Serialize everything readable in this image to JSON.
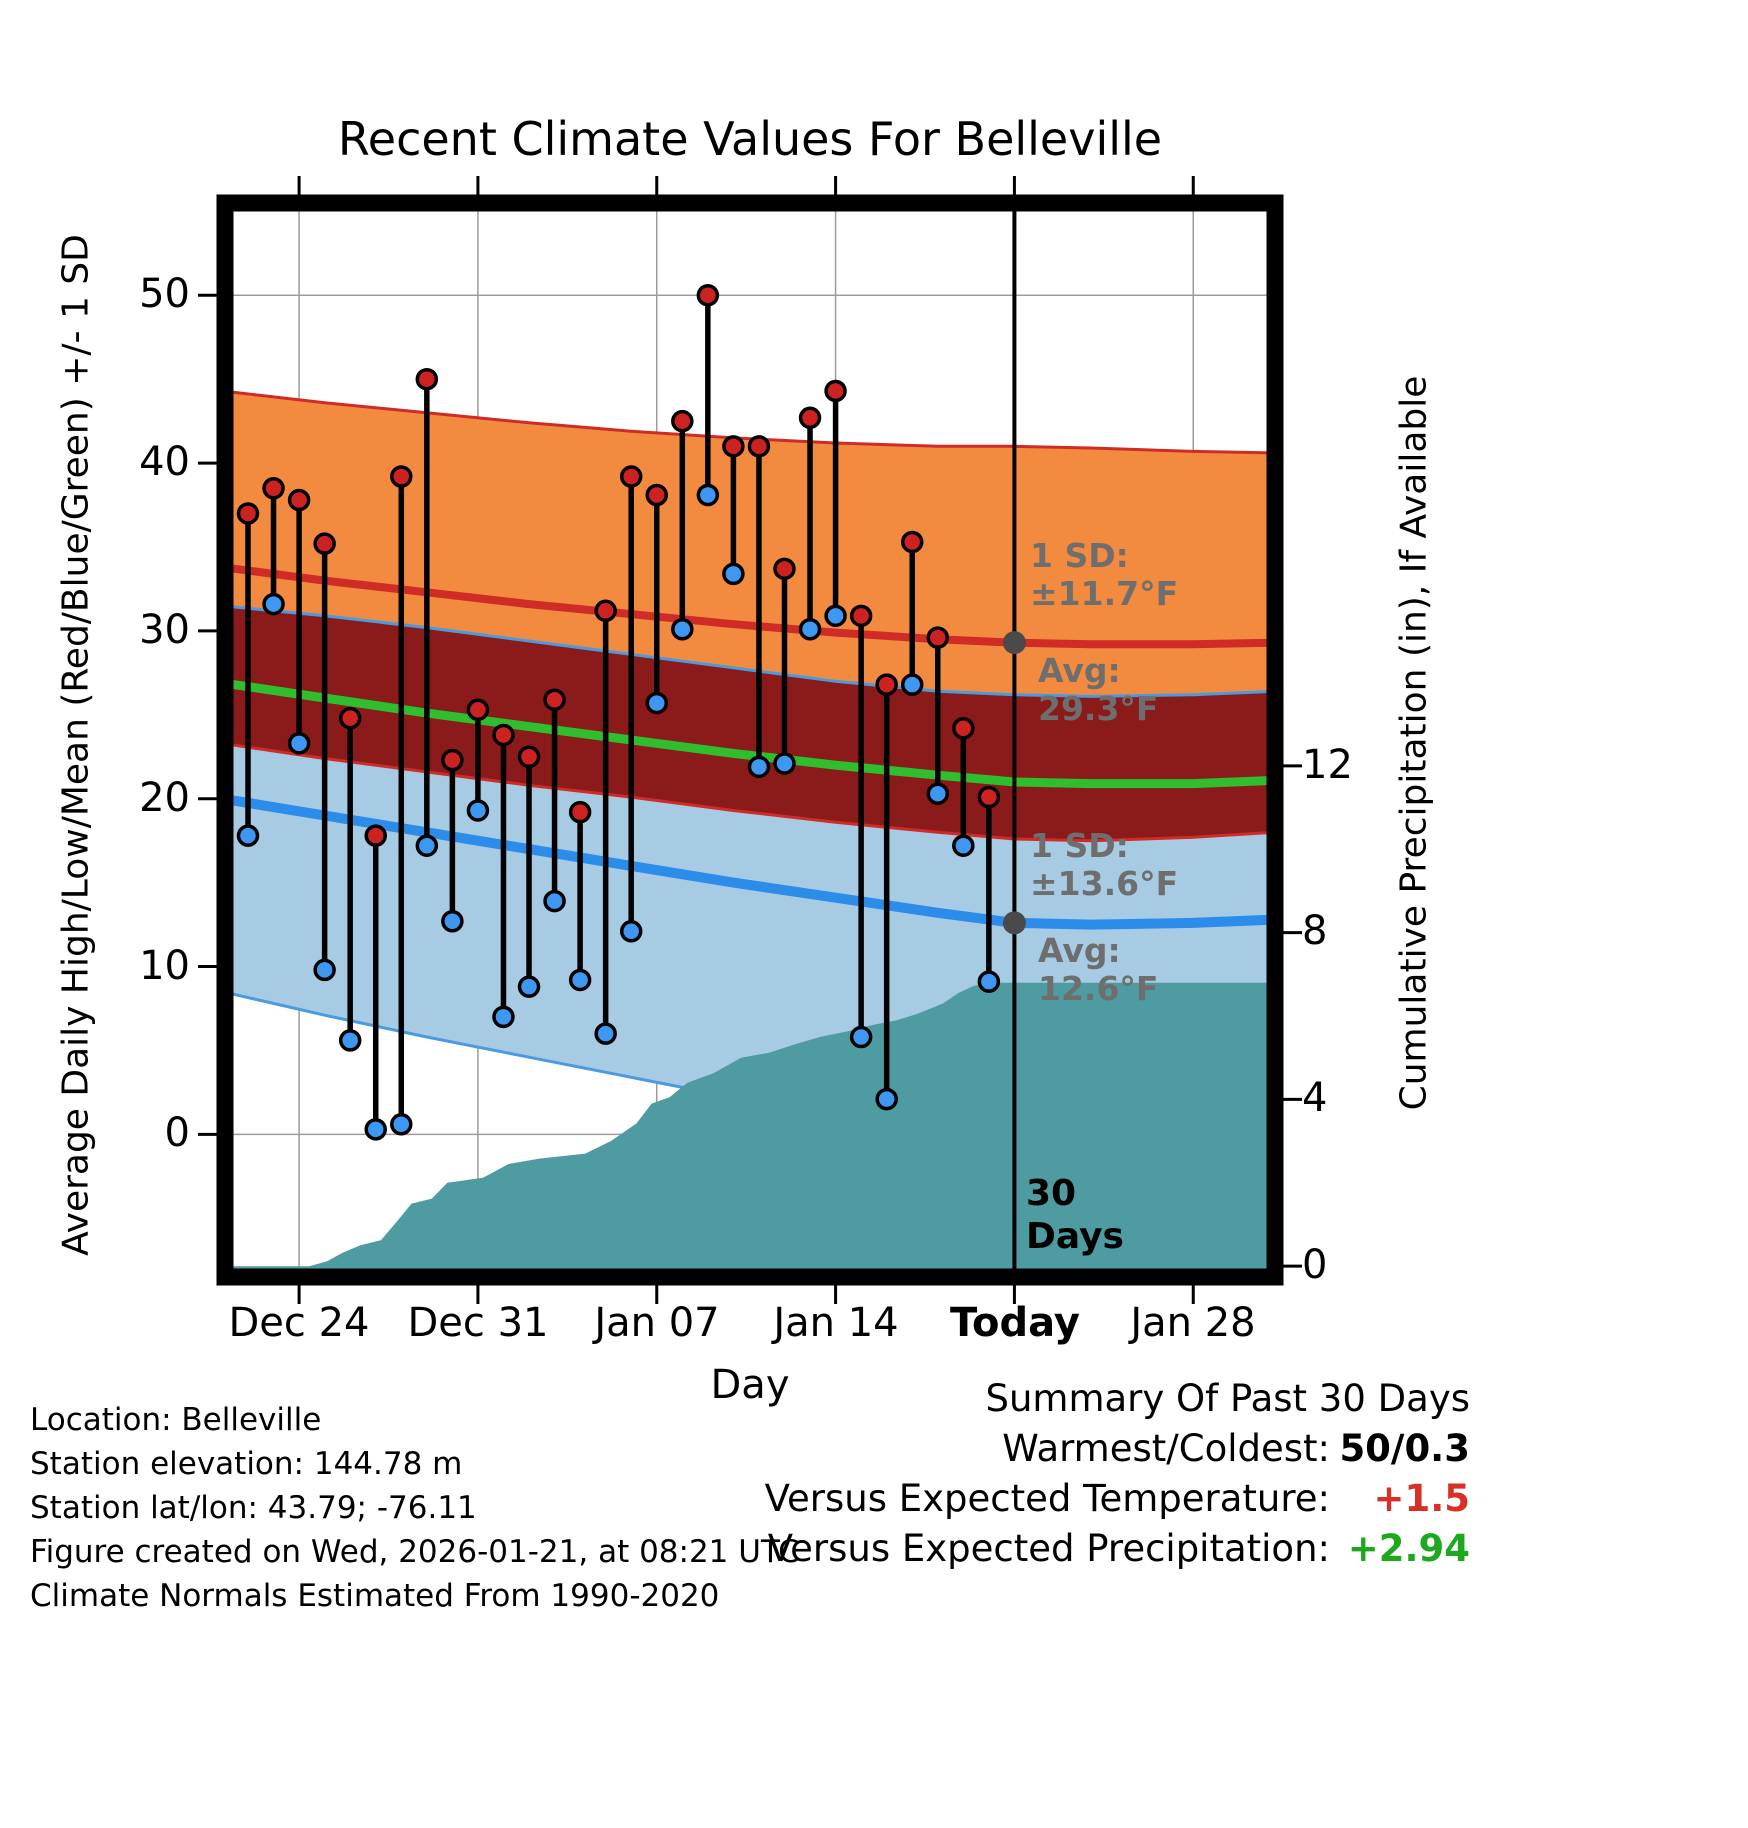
{
  "chart_data": {
    "type": "composite",
    "components": [
      "band",
      "line",
      "scatter-stems",
      "area"
    ],
    "title": "Recent Climate Values For Belleville",
    "xlabel": "Day",
    "ylabel_left": "Average Daily High/Low/Mean (Red/Blue/Green) +/- 1 SD",
    "ylabel_right": "Cumulative Precipitation (in), If Available",
    "x_axis": {
      "range": [
        0.1,
        41.2
      ],
      "day_zero": "Dec 21",
      "tick_days": [
        3,
        10,
        17,
        24,
        31,
        38
      ],
      "tick_labels": [
        "Dec 24",
        "Dec 31",
        "Jan 07",
        "Jan 14",
        "Today",
        "Jan 28"
      ]
    },
    "temp_axis": {
      "range": [
        -8.5,
        55.5
      ],
      "ticks": [
        50,
        40,
        30,
        20,
        10,
        0
      ]
    },
    "precip_axis": {
      "range": [
        -0.26,
        25.5
      ],
      "ticks": [
        12,
        8,
        4,
        0
      ]
    },
    "days": [
      {
        "date": "Dec 22",
        "day": 1,
        "high": 37.0,
        "low": 17.8
      },
      {
        "date": "Dec 23",
        "day": 2,
        "high": 38.5,
        "low": 31.6
      },
      {
        "date": "Dec 24",
        "day": 3,
        "high": 37.8,
        "low": 23.3
      },
      {
        "date": "Dec 25",
        "day": 4,
        "high": 35.2,
        "low": 9.8
      },
      {
        "date": "Dec 26",
        "day": 5,
        "high": 24.8,
        "low": 5.6
      },
      {
        "date": "Dec 27",
        "day": 6,
        "high": 17.8,
        "low": 0.3
      },
      {
        "date": "Dec 28",
        "day": 7,
        "high": 39.2,
        "low": 0.6
      },
      {
        "date": "Dec 29",
        "day": 8,
        "high": 45.0,
        "low": 17.2
      },
      {
        "date": "Dec 30",
        "day": 9,
        "high": 22.3,
        "low": 12.7
      },
      {
        "date": "Dec 31",
        "day": 10,
        "high": 25.3,
        "low": 19.3
      },
      {
        "date": "Jan 01",
        "day": 11,
        "high": 23.8,
        "low": 7.0
      },
      {
        "date": "Jan 02",
        "day": 12,
        "high": 22.5,
        "low": 8.8
      },
      {
        "date": "Jan 03",
        "day": 13,
        "high": 25.9,
        "low": 13.9
      },
      {
        "date": "Jan 04",
        "day": 14,
        "high": 19.2,
        "low": 9.2
      },
      {
        "date": "Jan 05",
        "day": 15,
        "high": 31.2,
        "low": 6.0
      },
      {
        "date": "Jan 06",
        "day": 16,
        "high": 39.2,
        "low": 12.1
      },
      {
        "date": "Jan 07",
        "day": 17,
        "high": 38.1,
        "low": 25.7
      },
      {
        "date": "Jan 08",
        "day": 18,
        "high": 42.5,
        "low": 30.1
      },
      {
        "date": "Jan 09",
        "day": 19,
        "high": 50.0,
        "low": 38.1
      },
      {
        "date": "Jan 10",
        "day": 20,
        "high": 41.0,
        "low": 33.4
      },
      {
        "date": "Jan 11",
        "day": 21,
        "high": 41.0,
        "low": 21.9
      },
      {
        "date": "Jan 12",
        "day": 22,
        "high": 33.7,
        "low": 22.1
      },
      {
        "date": "Jan 13",
        "day": 23,
        "high": 42.7,
        "low": 30.1
      },
      {
        "date": "Jan 14",
        "day": 24,
        "high": 44.3,
        "low": 30.9
      },
      {
        "date": "Jan 15",
        "day": 25,
        "high": 30.9,
        "low": 5.8
      },
      {
        "date": "Jan 16",
        "day": 26,
        "high": 26.8,
        "low": 2.1
      },
      {
        "date": "Jan 17",
        "day": 27,
        "high": 35.3,
        "low": 26.8
      },
      {
        "date": "Jan 18",
        "day": 28,
        "high": 29.6,
        "low": 20.3
      },
      {
        "date": "Jan 19",
        "day": 29,
        "high": 24.2,
        "low": 17.2
      },
      {
        "date": "Jan 20",
        "day": 30,
        "high": 20.1,
        "low": 9.1
      }
    ],
    "normals": {
      "day": [
        0,
        4,
        8,
        12,
        16,
        20,
        24,
        28,
        31,
        34,
        38,
        41.2
      ],
      "high_avg": [
        33.8,
        33.0,
        32.3,
        31.6,
        31.0,
        30.4,
        29.9,
        29.5,
        29.3,
        29.2,
        29.2,
        29.3
      ],
      "high_plus_sd": [
        44.3,
        43.6,
        43.0,
        42.4,
        41.9,
        41.5,
        41.2,
        41.0,
        41.0,
        40.9,
        40.7,
        40.6
      ],
      "high_minus_sd": [
        23.3,
        22.4,
        21.6,
        20.8,
        20.1,
        19.3,
        18.6,
        18.0,
        17.6,
        17.5,
        17.7,
        18.0
      ],
      "low_avg": [
        20.0,
        19.0,
        18.0,
        17.0,
        16.0,
        15.0,
        14.1,
        13.2,
        12.6,
        12.5,
        12.6,
        12.8
      ],
      "low_plus_sd": [
        31.5,
        30.9,
        30.2,
        29.4,
        28.6,
        27.8,
        27.0,
        26.4,
        26.2,
        26.1,
        26.2,
        26.4
      ],
      "low_minus_sd": [
        8.5,
        7.1,
        5.8,
        4.6,
        3.4,
        2.2,
        1.2,
        0.0,
        -1.0,
        -1.1,
        -1.0,
        -0.8
      ],
      "mean": [
        26.9,
        26.0,
        25.1,
        24.3,
        23.5,
        22.7,
        22.0,
        21.4,
        21.0,
        20.9,
        20.9,
        21.1
      ]
    },
    "precipitation": {
      "units": "in",
      "points": [
        [
          0,
          0
        ],
        [
          3.4,
          0
        ],
        [
          4.1,
          0.12
        ],
        [
          4.7,
          0.32
        ],
        [
          5.4,
          0.5
        ],
        [
          6.2,
          0.62
        ],
        [
          6.8,
          1.05
        ],
        [
          7.4,
          1.5
        ],
        [
          8.2,
          1.62
        ],
        [
          8.8,
          2.0
        ],
        [
          10.2,
          2.12
        ],
        [
          11.2,
          2.45
        ],
        [
          12.4,
          2.58
        ],
        [
          14.2,
          2.7
        ],
        [
          15.2,
          3.0
        ],
        [
          16.2,
          3.42
        ],
        [
          16.8,
          3.9
        ],
        [
          17.5,
          4.05
        ],
        [
          18.2,
          4.4
        ],
        [
          19.2,
          4.62
        ],
        [
          20.3,
          5.0
        ],
        [
          21.4,
          5.12
        ],
        [
          22.4,
          5.32
        ],
        [
          23.4,
          5.5
        ],
        [
          24.4,
          5.62
        ],
        [
          25.4,
          5.78
        ],
        [
          26.4,
          5.9
        ],
        [
          27.2,
          6.05
        ],
        [
          28.2,
          6.3
        ],
        [
          28.8,
          6.55
        ],
        [
          29.4,
          6.72
        ],
        [
          30,
          6.8
        ],
        [
          41.2,
          6.8
        ]
      ]
    },
    "today": {
      "day": 31,
      "high_avg": 29.3,
      "high_sd": 11.7,
      "low_avg": 12.6,
      "low_sd": 13.6
    },
    "colors": {
      "high_band": "#f28b3f",
      "overlap_band": "#8b1a1a",
      "low_band": "#a6cbe3",
      "high_line": "#cf2b27",
      "low_line": "#2b8cea",
      "low_edge": "#4a9ae0",
      "mean_line": "#2ebe2e",
      "precip_fill": "#4e9ca2",
      "grid": "#9c9c9c",
      "stem": "#000000",
      "high_dot": "#cc2222",
      "low_dot": "#3e97f0",
      "today_marker": "#4a4a4a"
    }
  },
  "annotations": {
    "high_sd_label": "1 SD:",
    "high_sd_value": "±11.7°F",
    "high_avg_label": "Avg:",
    "high_avg_value": "29.3°F",
    "low_sd_label": "1 SD:",
    "low_sd_value": "±13.6°F",
    "low_avg_label": "Avg:",
    "low_avg_value": "12.6°F",
    "window_line1": "30",
    "window_line2": "Days"
  },
  "footer": {
    "location": "Location: Belleville",
    "elevation": "Station elevation: 144.78 m",
    "latlon": "Station lat/lon: 43.79; -76.11",
    "created": "Figure created on Wed, 2026-01-21, at 08:21 UTC",
    "normals": "Climate Normals Estimated From 1990-2020"
  },
  "summary": {
    "title": "Summary Of Past 30 Days",
    "rows": [
      {
        "label": "Warmest/Coldest:",
        "value": "50/0.3",
        "color": "#000000"
      },
      {
        "label": "Versus Expected Temperature:",
        "value": "+1.5",
        "color": "#d93025"
      },
      {
        "label": "Versus Expected Precipitation:",
        "value": "+2.94",
        "color": "#1da81d"
      }
    ]
  }
}
